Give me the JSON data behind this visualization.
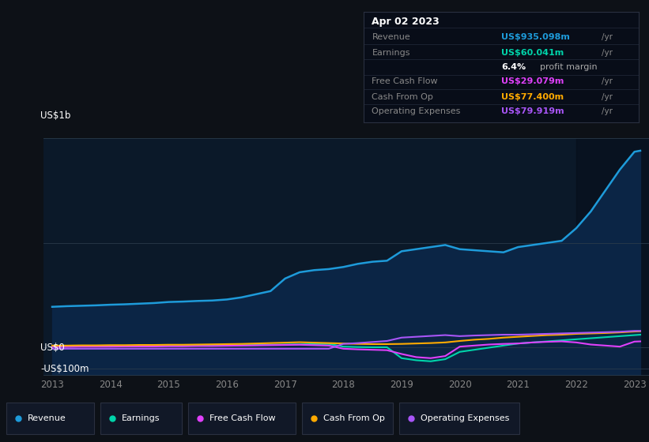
{
  "bg_color": "#0d1117",
  "chart_bg": "#0b1929",
  "title_date": "Apr 02 2023",
  "tooltip_bg": "#0a0e1a",
  "tooltip_border": "#2a2a3a",
  "ylabel_top": "US$1b",
  "ylabel_zero": "US$0",
  "ylabel_neg": "-US$100m",
  "x_labels": [
    "2013",
    "2014",
    "2015",
    "2016",
    "2017",
    "2018",
    "2019",
    "2020",
    "2021",
    "2022",
    "2023"
  ],
  "years": [
    2013.0,
    2013.25,
    2013.5,
    2013.75,
    2014.0,
    2014.25,
    2014.5,
    2014.75,
    2015.0,
    2015.25,
    2015.5,
    2015.75,
    2016.0,
    2016.25,
    2016.5,
    2016.75,
    2017.0,
    2017.25,
    2017.5,
    2017.75,
    2018.0,
    2018.25,
    2018.5,
    2018.75,
    2019.0,
    2019.25,
    2019.5,
    2019.75,
    2020.0,
    2020.25,
    2020.5,
    2020.75,
    2021.0,
    2021.25,
    2021.5,
    2021.75,
    2022.0,
    2022.25,
    2022.5,
    2022.75,
    2023.0,
    2023.1
  ],
  "revenue": [
    195,
    198,
    200,
    202,
    205,
    207,
    210,
    213,
    218,
    220,
    223,
    225,
    230,
    240,
    255,
    270,
    330,
    360,
    370,
    375,
    385,
    400,
    410,
    415,
    460,
    470,
    480,
    490,
    470,
    465,
    460,
    455,
    480,
    490,
    500,
    510,
    570,
    650,
    750,
    850,
    935,
    940
  ],
  "earnings": [
    5,
    5,
    6,
    6,
    7,
    7,
    8,
    8,
    9,
    9,
    10,
    10,
    11,
    12,
    13,
    14,
    15,
    16,
    17,
    18,
    5,
    3,
    2,
    2,
    -50,
    -60,
    -65,
    -55,
    -20,
    -10,
    0,
    10,
    20,
    25,
    30,
    35,
    40,
    45,
    50,
    55,
    60,
    62
  ],
  "free_cash_flow": [
    4,
    4,
    5,
    5,
    5,
    6,
    6,
    6,
    7,
    7,
    8,
    8,
    9,
    10,
    11,
    12,
    13,
    14,
    12,
    10,
    -5,
    -8,
    -10,
    -12,
    -30,
    -45,
    -50,
    -40,
    5,
    10,
    15,
    18,
    20,
    25,
    28,
    30,
    25,
    15,
    10,
    5,
    29,
    30
  ],
  "cash_from_op": [
    10,
    10,
    11,
    11,
    12,
    12,
    13,
    13,
    14,
    14,
    15,
    16,
    17,
    18,
    20,
    22,
    24,
    26,
    24,
    22,
    20,
    18,
    17,
    17,
    18,
    20,
    22,
    25,
    32,
    38,
    42,
    48,
    52,
    56,
    60,
    62,
    66,
    68,
    70,
    73,
    77,
    78
  ],
  "operating_expenses": [
    -5,
    -5,
    -5,
    -5,
    -5,
    -5,
    -5,
    -5,
    -5,
    -5,
    -5,
    -5,
    -5,
    -5,
    -5,
    -5,
    -5,
    -5,
    -5,
    -5,
    18,
    22,
    27,
    32,
    48,
    52,
    56,
    60,
    55,
    58,
    60,
    62,
    62,
    64,
    66,
    68,
    70,
    72,
    74,
    76,
    80,
    80
  ],
  "revenue_color": "#1e9bda",
  "earnings_color": "#00d4aa",
  "fcf_color": "#e040fb",
  "cash_op_color": "#ffaa00",
  "opex_color": "#a855f7",
  "legend": [
    {
      "label": "Revenue",
      "color": "#1e9bda"
    },
    {
      "label": "Earnings",
      "color": "#00d4aa"
    },
    {
      "label": "Free Cash Flow",
      "color": "#e040fb"
    },
    {
      "label": "Cash From Op",
      "color": "#ffaa00"
    },
    {
      "label": "Operating Expenses",
      "color": "#a855f7"
    }
  ],
  "tooltip_rows": [
    {
      "label": "Revenue",
      "value": "US$935.098m",
      "color": "#1e9bda",
      "yr": true
    },
    {
      "label": "Earnings",
      "value": "US$60.041m",
      "color": "#00d4aa",
      "yr": true
    },
    {
      "label": "",
      "value": "6.4%",
      "color": "#ffffff",
      "suffix": " profit margin",
      "yr": false
    },
    {
      "label": "Free Cash Flow",
      "value": "US$29.079m",
      "color": "#e040fb",
      "yr": true
    },
    {
      "label": "Cash From Op",
      "value": "US$77.400m",
      "color": "#ffaa00",
      "yr": true
    },
    {
      "label": "Operating Expenses",
      "value": "US$79.919m",
      "color": "#a855f7",
      "yr": true
    }
  ]
}
